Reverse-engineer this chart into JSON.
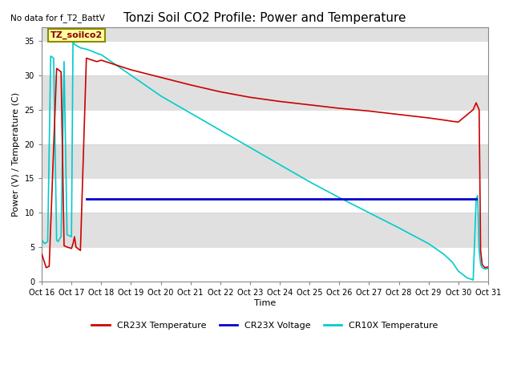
{
  "title": "Tonzi Soil CO2 Profile: Power and Temperature",
  "top_left_text": "No data for f_T2_BattV",
  "box_label": "TZ_soilco2",
  "ylabel": "Power (V) / Temperature (C)",
  "xlabel": "Time",
  "xlim": [
    0,
    15
  ],
  "ylim": [
    0,
    37
  ],
  "yticks": [
    0,
    5,
    10,
    15,
    20,
    25,
    30,
    35
  ],
  "xtick_labels": [
    "Oct 16",
    "Oct 17",
    "Oct 18",
    "Oct 19",
    "Oct 20",
    "Oct 21",
    "Oct 22",
    "Oct 23",
    "Oct 24",
    "Oct 25",
    "Oct 26",
    "Oct 27",
    "Oct 28",
    "Oct 29",
    "Oct 30",
    "Oct 31"
  ],
  "red_x": [
    0.0,
    0.15,
    0.25,
    0.5,
    0.65,
    0.75,
    0.85,
    1.0,
    1.05,
    1.1,
    1.15,
    1.3,
    1.5,
    1.7,
    1.85,
    2.0,
    3.0,
    4.0,
    5.0,
    6.0,
    7.0,
    8.0,
    9.0,
    10.0,
    11.0,
    12.0,
    13.0,
    13.5,
    13.8,
    14.0,
    14.5,
    14.6,
    14.7,
    14.75,
    14.8,
    14.85,
    14.9,
    15.0
  ],
  "red_y": [
    4.0,
    2.0,
    2.2,
    31.0,
    30.5,
    5.2,
    5.0,
    4.8,
    5.5,
    6.5,
    5.0,
    4.5,
    32.5,
    32.2,
    32.0,
    32.2,
    30.8,
    29.7,
    28.6,
    27.6,
    26.8,
    26.2,
    25.7,
    25.2,
    24.8,
    24.3,
    23.8,
    23.5,
    23.3,
    23.2,
    25.0,
    26.0,
    25.0,
    4.5,
    2.5,
    2.2,
    2.0,
    2.1
  ],
  "blue_x": [
    1.5,
    14.6
  ],
  "blue_y": [
    12.0,
    12.0
  ],
  "cyan_x": [
    0.0,
    0.1,
    0.2,
    0.3,
    0.4,
    0.5,
    0.55,
    0.6,
    0.65,
    0.75,
    0.85,
    1.0,
    1.05,
    1.1,
    1.3,
    1.5,
    1.7,
    1.85,
    2.0,
    3.0,
    4.0,
    5.0,
    6.0,
    7.0,
    8.0,
    9.0,
    10.0,
    11.0,
    12.0,
    13.0,
    13.5,
    13.8,
    14.0,
    14.3,
    14.45,
    14.5,
    14.6,
    14.65,
    14.7,
    14.75,
    14.8,
    14.9,
    15.0
  ],
  "cyan_y": [
    6.0,
    5.5,
    5.8,
    32.8,
    32.5,
    6.0,
    5.8,
    6.2,
    6.5,
    32.0,
    6.8,
    6.5,
    35.0,
    34.5,
    34.0,
    33.8,
    33.5,
    33.2,
    33.0,
    30.0,
    27.0,
    24.5,
    22.0,
    19.5,
    17.0,
    14.5,
    12.2,
    10.0,
    7.8,
    5.5,
    4.0,
    2.8,
    1.5,
    0.5,
    0.3,
    0.2,
    12.0,
    12.5,
    4.5,
    2.5,
    2.0,
    1.8,
    1.9
  ],
  "red_color": "#CC0000",
  "blue_color": "#0000CC",
  "cyan_color": "#00CCCC",
  "legend_labels": [
    "CR23X Temperature",
    "CR23X Voltage",
    "CR10X Temperature"
  ],
  "bg_color": "#E0E0E0",
  "line_width": 1.2,
  "title_fontsize": 11,
  "tick_fontsize": 7,
  "label_fontsize": 8
}
